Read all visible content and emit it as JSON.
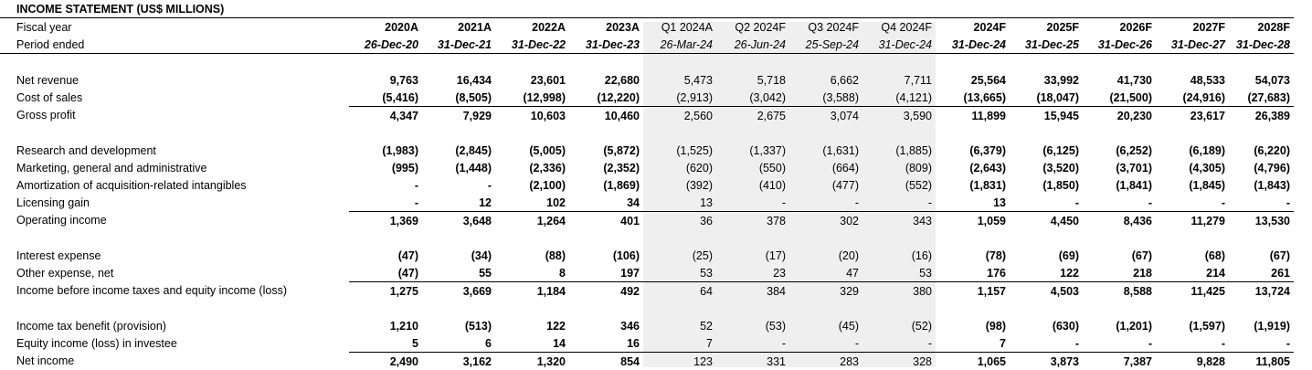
{
  "title": "INCOME STATEMENT (US$ MILLIONS)",
  "header": {
    "fiscal_year_label": "Fiscal year",
    "period_label": "Period ended",
    "years": [
      "2020A",
      "2021A",
      "2022A",
      "2023A",
      "Q1 2024A",
      "Q2 2024F",
      "Q3 2024F",
      "Q4 2024F",
      "2024F",
      "2025F",
      "2026F",
      "2027F",
      "2028F"
    ],
    "dates": [
      "26-Dec-20",
      "31-Dec-21",
      "31-Dec-22",
      "31-Dec-23",
      "26-Mar-24",
      "26-Jun-24",
      "25-Sep-24",
      "31-Dec-24",
      "31-Dec-24",
      "31-Dec-25",
      "31-Dec-26",
      "31-Dec-27",
      "31-Dec-28"
    ]
  },
  "rows": [
    {
      "label": "Net revenue",
      "values": [
        "9,763",
        "16,434",
        "23,601",
        "22,680",
        "5,473",
        "5,718",
        "6,662",
        "7,711",
        "25,564",
        "33,992",
        "41,730",
        "48,533",
        "54,073"
      ]
    },
    {
      "label": "Cost of sales",
      "values": [
        "(5,416)",
        "(8,505)",
        "(12,998)",
        "(12,220)",
        "(2,913)",
        "(3,042)",
        "(3,588)",
        "(4,121)",
        "(13,665)",
        "(18,047)",
        "(21,500)",
        "(24,916)",
        "(27,683)"
      ]
    },
    {
      "label": "Gross profit",
      "values": [
        "4,347",
        "7,929",
        "10,603",
        "10,460",
        "2,560",
        "2,675",
        "3,074",
        "3,590",
        "11,899",
        "15,945",
        "20,230",
        "23,617",
        "26,389"
      ]
    },
    {
      "label": "Research and development",
      "values": [
        "(1,983)",
        "(2,845)",
        "(5,005)",
        "(5,872)",
        "(1,525)",
        "(1,337)",
        "(1,631)",
        "(1,885)",
        "(6,379)",
        "(6,125)",
        "(6,252)",
        "(6,189)",
        "(6,220)"
      ]
    },
    {
      "label": "Marketing, general and administrative",
      "values": [
        "(995)",
        "(1,448)",
        "(2,336)",
        "(2,352)",
        "(620)",
        "(550)",
        "(664)",
        "(809)",
        "(2,643)",
        "(3,520)",
        "(3,701)",
        "(4,305)",
        "(4,796)"
      ]
    },
    {
      "label": "Amortization of acquisition-related intangibles",
      "values": [
        "-",
        "-",
        "(2,100)",
        "(1,869)",
        "(392)",
        "(410)",
        "(477)",
        "(552)",
        "(1,831)",
        "(1,850)",
        "(1,841)",
        "(1,845)",
        "(1,843)"
      ]
    },
    {
      "label": "Licensing gain",
      "values": [
        "-",
        "12",
        "102",
        "34",
        "13",
        "-",
        "-",
        "-",
        "13",
        "-",
        "-",
        "-",
        "-"
      ]
    },
    {
      "label": "Operating income",
      "values": [
        "1,369",
        "3,648",
        "1,264",
        "401",
        "36",
        "378",
        "302",
        "343",
        "1,059",
        "4,450",
        "8,436",
        "11,279",
        "13,530"
      ]
    },
    {
      "label": "Interest expense",
      "values": [
        "(47)",
        "(34)",
        "(88)",
        "(106)",
        "(25)",
        "(17)",
        "(20)",
        "(16)",
        "(78)",
        "(69)",
        "(67)",
        "(68)",
        "(67)"
      ]
    },
    {
      "label": "Other expense, net",
      "values": [
        "(47)",
        "55",
        "8",
        "197",
        "53",
        "23",
        "47",
        "53",
        "176",
        "122",
        "218",
        "214",
        "261"
      ]
    },
    {
      "label": "Income before income taxes and equity income (loss)",
      "values": [
        "1,275",
        "3,669",
        "1,184",
        "492",
        "64",
        "384",
        "329",
        "380",
        "1,157",
        "4,503",
        "8,588",
        "11,425",
        "13,724"
      ]
    },
    {
      "label": "Income tax benefit (provision)",
      "values": [
        "1,210",
        "(513)",
        "122",
        "346",
        "52",
        "(53)",
        "(45)",
        "(52)",
        "(98)",
        "(630)",
        "(1,201)",
        "(1,597)",
        "(1,919)"
      ]
    },
    {
      "label": "Equity income (loss) in investee",
      "values": [
        "5",
        "6",
        "14",
        "16",
        "7",
        "-",
        "-",
        "-",
        "7",
        "-",
        "-",
        "-",
        "-"
      ]
    },
    {
      "label": "Net income",
      "values": [
        "2,490",
        "3,162",
        "1,320",
        "854",
        "123",
        "331",
        "283",
        "328",
        "1,065",
        "3,873",
        "7,387",
        "9,828",
        "11,805"
      ]
    }
  ]
}
